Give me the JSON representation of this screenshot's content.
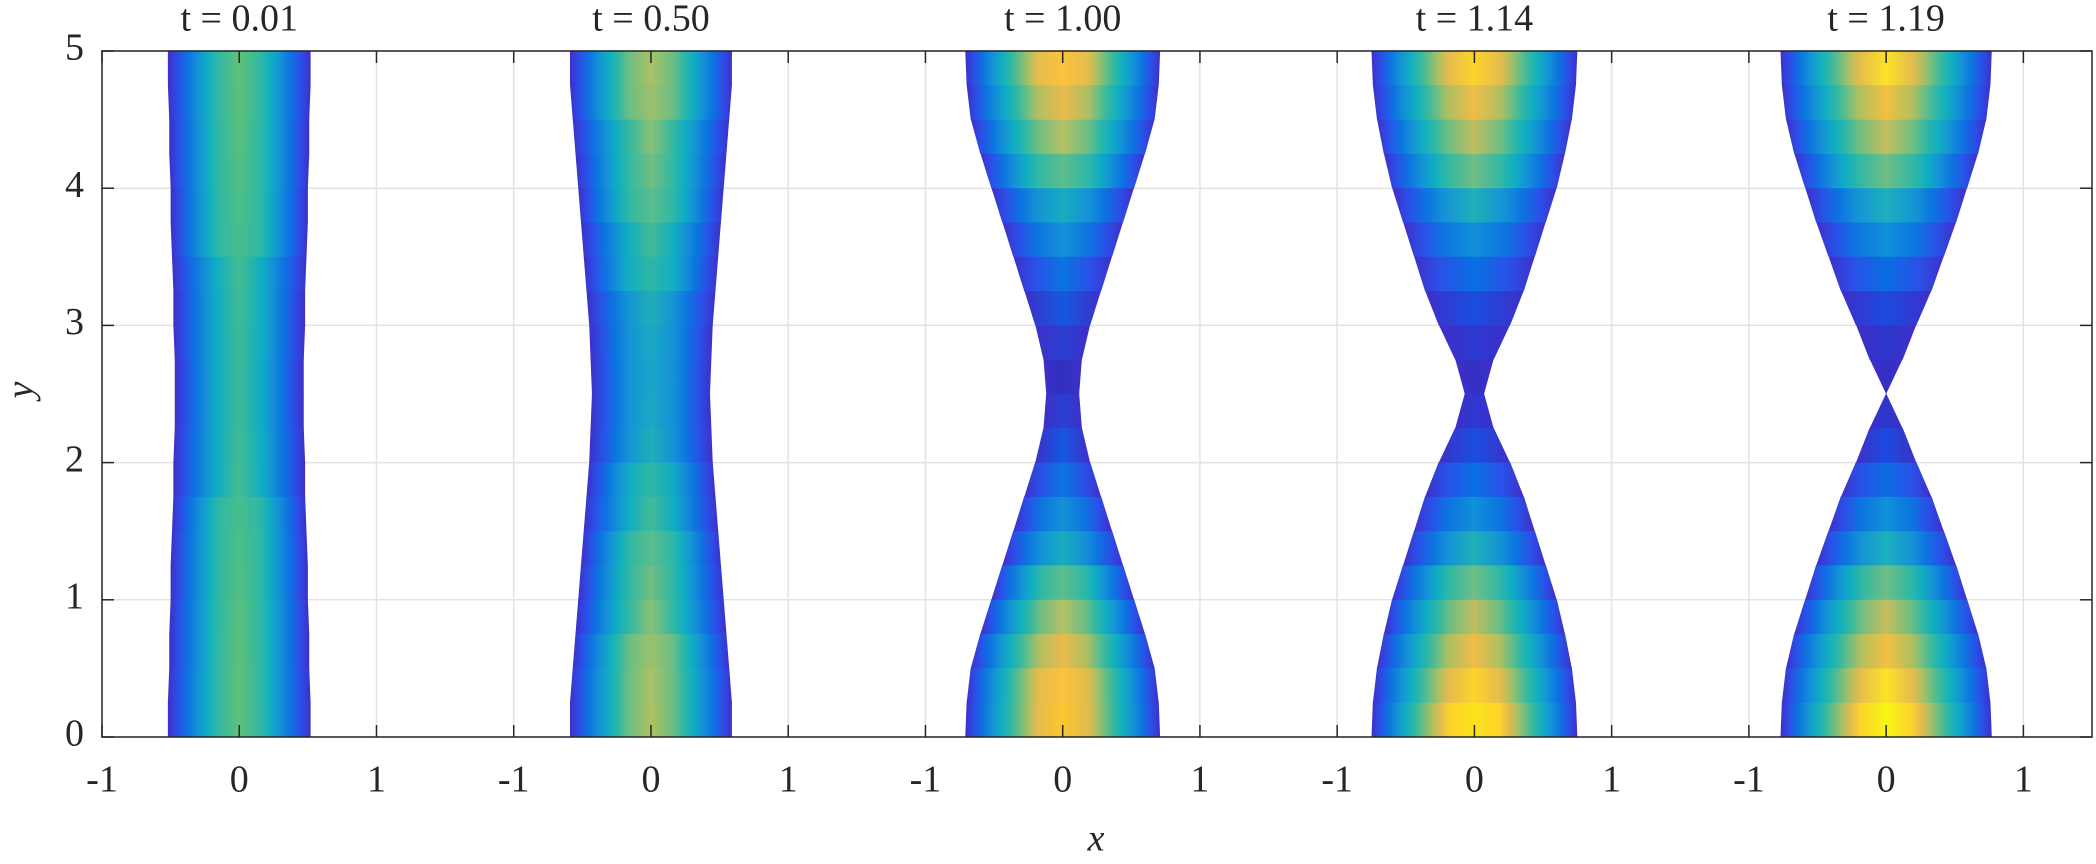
{
  "axes": {
    "xlabel": "x",
    "ylabel": "y",
    "ylim": [
      0,
      5
    ],
    "yticks": [
      0,
      1,
      2,
      3,
      4,
      5
    ],
    "grid": true,
    "edge_color": "#3e2fc8"
  },
  "chart_data": [
    {
      "type": "profile",
      "title": "t = 0.01",
      "xlim": [
        -1,
        1.5
      ],
      "xticks": [
        -1,
        0,
        1
      ],
      "y": [
        0,
        0.25,
        0.5,
        0.75,
        1,
        1.25,
        1.5,
        1.75,
        2,
        2.25,
        2.5,
        2.75,
        3,
        3.25,
        3.5,
        3.75,
        4,
        4.25,
        4.5,
        4.75,
        5
      ],
      "values": [
        0.52,
        0.52,
        0.51,
        0.51,
        0.5,
        0.5,
        0.49,
        0.48,
        0.48,
        0.47,
        0.47,
        0.47,
        0.48,
        0.48,
        0.49,
        0.5,
        0.5,
        0.51,
        0.51,
        0.52,
        0.52
      ],
      "center_colors": [
        "#60c177",
        "#5fc178",
        "#5cc07a",
        "#58c07d",
        "#52bf82",
        "#4dbe87",
        "#48bd8b",
        "#44bc8f",
        "#40bb92",
        "#3db995",
        "#3bb997",
        "#3db995",
        "#40bb92",
        "#44bc8f",
        "#48bd8b",
        "#4dbe87",
        "#52bf82",
        "#58c07d",
        "#5cc07a",
        "#5fc178",
        "#60c177"
      ]
    },
    {
      "type": "profile",
      "title": "t = 0.50",
      "xlim": [
        -1.5,
        1.5
      ],
      "xticks": [
        -1,
        0,
        1
      ],
      "y": [
        0,
        0.25,
        0.5,
        0.75,
        1,
        1.25,
        1.5,
        1.75,
        2,
        2.25,
        2.5,
        2.75,
        3,
        3.25,
        3.5,
        3.75,
        4,
        4.25,
        4.5,
        4.75,
        5
      ],
      "values": [
        0.59,
        0.59,
        0.57,
        0.55,
        0.53,
        0.51,
        0.49,
        0.47,
        0.45,
        0.44,
        0.43,
        0.44,
        0.45,
        0.47,
        0.49,
        0.51,
        0.53,
        0.55,
        0.57,
        0.59,
        0.59
      ],
      "center_colors": [
        "#b0c060",
        "#aac164",
        "#9cc06c",
        "#88c076",
        "#72be82",
        "#5abd8c",
        "#44ba96",
        "#30b5a4",
        "#20aeb8",
        "#1aa8c4",
        "#18a6c8",
        "#1aa8c4",
        "#20aeb8",
        "#30b5a4",
        "#44ba96",
        "#5abd8c",
        "#72be82",
        "#88c076",
        "#9cc06c",
        "#aac164",
        "#b0c060"
      ]
    },
    {
      "type": "profile",
      "title": "t = 1.00",
      "xlim": [
        -1.5,
        1.5
      ],
      "xticks": [
        -1,
        0,
        1
      ],
      "y": [
        0,
        0.25,
        0.5,
        0.75,
        1,
        1.25,
        1.5,
        1.75,
        2,
        2.25,
        2.5,
        2.75,
        3,
        3.25,
        3.5,
        3.75,
        4,
        4.25,
        4.5,
        4.75,
        5
      ],
      "values": [
        0.71,
        0.7,
        0.67,
        0.6,
        0.52,
        0.44,
        0.36,
        0.28,
        0.2,
        0.14,
        0.12,
        0.14,
        0.2,
        0.28,
        0.36,
        0.44,
        0.52,
        0.6,
        0.67,
        0.7,
        0.71
      ],
      "center_colors": [
        "#fcc62e",
        "#fcc23c",
        "#eaba4c",
        "#b6c064",
        "#5cbd8c",
        "#18acbe",
        "#1592d6",
        "#0a74e0",
        "#1558e0",
        "#2a40d0",
        "#3030c0",
        "#2a40d0",
        "#1558e0",
        "#0a74e0",
        "#1592d6",
        "#18acbe",
        "#5cbd8c",
        "#b6c064",
        "#eaba4c",
        "#fcc23c",
        "#fcc62e"
      ]
    },
    {
      "type": "profile",
      "title": "t = 1.14",
      "xlim": [
        -1.5,
        1.5
      ],
      "xticks": [
        -1,
        0,
        1
      ],
      "y": [
        0,
        0.25,
        0.5,
        0.75,
        1,
        1.25,
        1.5,
        1.75,
        2,
        2.25,
        2.5,
        2.75,
        3,
        3.25,
        3.5,
        3.75,
        4,
        4.25,
        4.5,
        4.75,
        5
      ],
      "values": [
        0.75,
        0.74,
        0.71,
        0.66,
        0.6,
        0.52,
        0.44,
        0.36,
        0.26,
        0.14,
        0.07,
        0.14,
        0.26,
        0.36,
        0.44,
        0.52,
        0.6,
        0.66,
        0.71,
        0.74,
        0.75
      ],
      "center_colors": [
        "#fae41c",
        "#fcd42a",
        "#f0bc48",
        "#c2bd5e",
        "#70be84",
        "#20b0b8",
        "#1090d8",
        "#0870e2",
        "#1a4ee0",
        "#2c38d0",
        "#3530c4",
        "#2c38d0",
        "#1a4ee0",
        "#0870e2",
        "#1090d8",
        "#20b0b8",
        "#70be84",
        "#c2bd5e",
        "#f0bc48",
        "#fcd42a",
        "#fae41c"
      ]
    },
    {
      "type": "profile",
      "title": "t = 1.19",
      "xlim": [
        -1.5,
        1.5
      ],
      "xticks": [
        -1,
        0,
        1
      ],
      "y": [
        0,
        0.25,
        0.5,
        0.75,
        1,
        1.25,
        1.5,
        1.75,
        2,
        2.25,
        2.5,
        2.75,
        3,
        3.25,
        3.5,
        3.75,
        4,
        4.25,
        4.5,
        4.75,
        5
      ],
      "values": [
        0.77,
        0.76,
        0.73,
        0.67,
        0.59,
        0.51,
        0.42,
        0.33,
        0.22,
        0.12,
        0,
        0.12,
        0.22,
        0.33,
        0.42,
        0.51,
        0.59,
        0.67,
        0.73,
        0.76,
        0.77
      ],
      "center_colors": [
        "#f8f614",
        "#fce228",
        "#f2c040",
        "#c8bd5c",
        "#70be84",
        "#1cb0bc",
        "#1090d8",
        "#0a6ee2",
        "#1c4ade",
        "#2c36cc",
        "#3530c4",
        "#2c36cc",
        "#1c4ade",
        "#0a6ee2",
        "#1090d8",
        "#1cb0bc",
        "#70be84",
        "#c8bd5c",
        "#f2c040",
        "#fce228",
        "#f8f614"
      ]
    }
  ]
}
